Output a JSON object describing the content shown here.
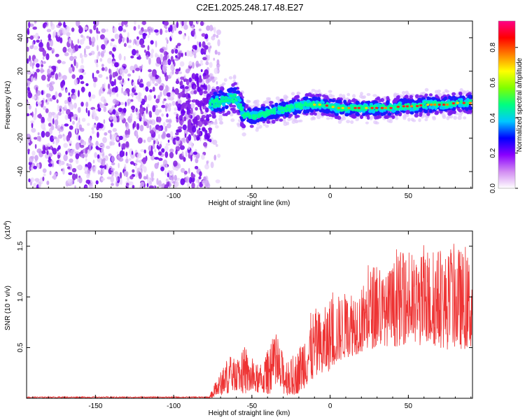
{
  "title": "C2E1.2025.248.17.48.E27",
  "chart_data": [
    {
      "type": "heatmap",
      "xlabel": "Height of straight line (km)",
      "ylabel": "Frequency (Hz)",
      "xlim": [
        -194,
        91
      ],
      "ylim": [
        -50,
        50
      ],
      "xticks": [
        -150,
        -100,
        -50,
        0,
        50
      ],
      "yticks": [
        -40,
        -20,
        0,
        20,
        40
      ],
      "xtick_labels": [
        "-150",
        "-100",
        "-50",
        "0",
        "50"
      ],
      "ytick_labels": [
        "-40",
        "-20",
        "0",
        "20",
        "40"
      ],
      "colorbar": {
        "label": "Normalized spectral amplitude",
        "range": [
          0.0,
          0.95
        ],
        "ticks": [
          0.0,
          0.2,
          0.4,
          0.6,
          0.8
        ],
        "tick_labels": [
          "0.0",
          "0.2",
          "0.4",
          "0.6",
          "0.8"
        ],
        "colors": [
          "#ffffff",
          "#d28cf2",
          "#8a00ff",
          "#0000ff",
          "#00c8ff",
          "#00ff80",
          "#80ff00",
          "#ffff00",
          "#ff8000",
          "#ff0000",
          "#ff0088"
        ]
      },
      "noise_region_x": [
        -194,
        -77
      ],
      "signal_track": {
        "x": [
          -77,
          -70,
          -65,
          -60,
          -55,
          -50,
          -45,
          -40,
          -35,
          -30,
          -25,
          -20,
          -15,
          -10,
          -5,
          0,
          5,
          10,
          15,
          20,
          25,
          30,
          35,
          40,
          45,
          50,
          55,
          60,
          65,
          70,
          75,
          80,
          85,
          90
        ],
        "y": [
          0,
          2,
          3,
          4,
          -6,
          -7,
          -6,
          -5,
          -4,
          -3,
          -2,
          -1,
          0,
          0,
          0,
          -1,
          -2,
          -2,
          -2,
          -2,
          -2,
          -2,
          -2,
          -2,
          -1,
          -1,
          -1,
          0,
          0,
          0,
          0,
          1,
          1,
          1
        ]
      }
    },
    {
      "type": "line",
      "xlabel": "Height of straight line (km)",
      "ylabel": "SNR (10 * v/v)",
      "y_multiplier_label": "(x10",
      "y_multiplier_exponent": "4",
      "xlim": [
        -194,
        91
      ],
      "ylim": [
        0,
        1.65
      ],
      "xticks": [
        -150,
        -100,
        -50,
        0,
        50
      ],
      "yticks": [
        0.5,
        1.0,
        1.5
      ],
      "xtick_labels": [
        "-150",
        "-100",
        "-50",
        "0",
        "50"
      ],
      "ytick_labels": [
        "0.5",
        "1.0",
        "1.5"
      ],
      "line_color": "#ee3333",
      "envelope": {
        "x": [
          -194,
          -100,
          -77,
          -72,
          -65,
          -60,
          -55,
          -50,
          -45,
          -40,
          -35,
          -30,
          -25,
          -20,
          -15,
          -10,
          -5,
          0,
          5,
          10,
          15,
          20,
          25,
          30,
          35,
          40,
          45,
          50,
          55,
          60,
          65,
          70,
          75,
          80,
          85,
          91
        ],
        "lo": [
          0.0,
          0.0,
          0.0,
          0.02,
          0.05,
          0.08,
          0.04,
          0.05,
          0.05,
          0.04,
          0.06,
          0.04,
          0.02,
          0.05,
          0.12,
          0.18,
          0.2,
          0.28,
          0.35,
          0.4,
          0.42,
          0.45,
          0.48,
          0.5,
          0.52,
          0.5,
          0.52,
          0.55,
          0.5,
          0.52,
          0.52,
          0.5,
          0.48,
          0.5,
          0.48,
          0.5
        ],
        "hi": [
          0.02,
          0.02,
          0.03,
          0.2,
          0.42,
          0.38,
          0.5,
          0.38,
          0.3,
          0.48,
          0.62,
          0.45,
          0.38,
          0.5,
          0.78,
          0.9,
          0.85,
          1.0,
          1.02,
          1.05,
          1.12,
          1.1,
          1.28,
          1.38,
          1.2,
          1.35,
          1.45,
          1.42,
          1.38,
          1.46,
          1.45,
          1.5,
          1.42,
          1.55,
          1.45,
          1.4
        ]
      }
    }
  ]
}
